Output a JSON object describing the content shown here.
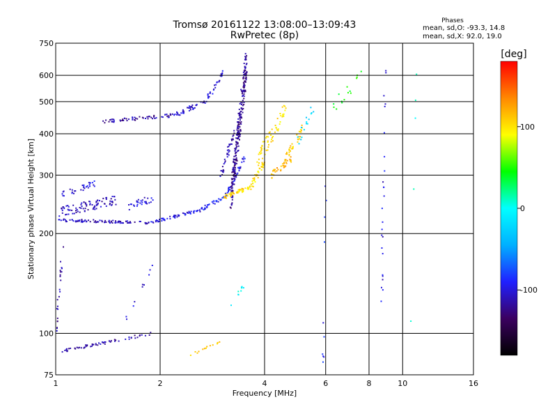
{
  "chart_data": {
    "type": "scatter",
    "title_line1": "Tromsø 20161122 13:08:00–13:09:43",
    "title_line2": "RwPretec (8p)",
    "xlabel": "Frequency [MHz]",
    "ylabel": "Stationary phase Virtual Height [km]",
    "x_scale": "log",
    "y_scale": "log",
    "xlim": [
      1,
      16
    ],
    "ylim": [
      75,
      750
    ],
    "x_ticks": [
      1,
      2,
      4,
      6,
      8,
      10,
      16
    ],
    "y_ticks": [
      75,
      100,
      200,
      300,
      400,
      500,
      600,
      750
    ],
    "grid": true,
    "phase_info": {
      "heading": "Phases",
      "o_label": "mean, sd,O: ",
      "o_value": "-93.3, 14.8",
      "x_label": "mean, sd,X: ",
      "x_value": "92.0, 19.0"
    },
    "colorbar": {
      "label": "[deg]",
      "min": -180,
      "max": 180,
      "ticks": [
        100,
        0,
        -100
      ],
      "colors": [
        "#000000",
        "#3b0060",
        "#2020ff",
        "#00b0ff",
        "#00ffff",
        "#00ff00",
        "#ffff00",
        "#ff8800",
        "#ff0000"
      ]
    },
    "series": [
      {
        "traces": [
          {
            "xr": [
              1.0,
              1.85
            ],
            "yr": [
              220,
              215
            ],
            "phase": -110,
            "n": 90,
            "spread": 4
          },
          {
            "xr": [
              1.85,
              2.6
            ],
            "yr": [
              215,
              235
            ],
            "phase": -100,
            "n": 60,
            "spread": 4
          },
          {
            "xr": [
              2.6,
              3.1
            ],
            "yr": [
              235,
              260
            ],
            "phase": -90,
            "n": 40,
            "spread": 5
          },
          {
            "xr": [
              3.1,
              3.5
            ],
            "yr": [
              260,
              340
            ],
            "phase": -95,
            "n": 40,
            "spread": 6
          },
          {
            "xr": [
              1.02,
              1.5
            ],
            "yr": [
              232,
              252
            ],
            "phase": -110,
            "n": 90,
            "spread": 14
          },
          {
            "xr": [
              1.02,
              1.3
            ],
            "yr": [
              260,
              285
            ],
            "phase": -100,
            "n": 30,
            "spread": 10
          },
          {
            "xr": [
              1.6,
              1.9
            ],
            "yr": [
              240,
              255
            ],
            "phase": -100,
            "n": 30,
            "spread": 10
          },
          {
            "xr": [
              1.35,
              2.2
            ],
            "yr": [
              435,
              455
            ],
            "phase": -115,
            "n": 60,
            "spread": 5
          },
          {
            "xr": [
              2.2,
              2.7
            ],
            "yr": [
              455,
              500
            ],
            "phase": -105,
            "n": 40,
            "spread": 6
          },
          {
            "xr": [
              2.7,
              3.05
            ],
            "yr": [
              500,
              610
            ],
            "phase": -100,
            "n": 30,
            "spread": 8
          },
          {
            "xr": [
              3.0,
              3.3
            ],
            "yr": [
              300,
              420
            ],
            "phase": -115,
            "n": 40,
            "spread": 8
          },
          {
            "xr": [
              3.2,
              3.55
            ],
            "yr": [
              260,
              660
            ],
            "phase": -120,
            "n": 260,
            "spread": 40
          },
          {
            "xr": [
              3.05,
              3.6
            ],
            "yr": [
              258,
              275
            ],
            "phase": 105,
            "n": 45,
            "spread": 6
          },
          {
            "xr": [
              3.6,
              4.0
            ],
            "yr": [
              270,
              330
            ],
            "phase": 100,
            "n": 40,
            "spread": 10
          },
          {
            "xr": [
              3.8,
              4.6
            ],
            "yr": [
              330,
              470
            ],
            "phase": 100,
            "n": 60,
            "spread": 25
          },
          {
            "xr": [
              4.2,
              4.8
            ],
            "yr": [
              300,
              340
            ],
            "phase": 120,
            "n": 40,
            "spread": 10
          },
          {
            "xr": [
              4.6,
              5.2
            ],
            "yr": [
              340,
              420
            ],
            "phase": 110,
            "n": 35,
            "spread": 10
          },
          {
            "xr": [
              5.0,
              5.5
            ],
            "yr": [
              380,
              480
            ],
            "phase": -20,
            "n": 15,
            "spread": 20
          },
          {
            "xr": [
              1.0,
              1.05
            ],
            "yr": [
              100,
              185
            ],
            "phase": -115,
            "n": 25,
            "spread": 5
          },
          {
            "xr": [
              1.02,
              1.9
            ],
            "yr": [
              88,
              100
            ],
            "phase": -115,
            "n": 60,
            "spread": 4
          },
          {
            "xr": [
              1.6,
              1.9
            ],
            "yr": [
              110,
              160
            ],
            "phase": -100,
            "n": 10,
            "spread": 6
          },
          {
            "xr": [
              2.4,
              3.0
            ],
            "yr": [
              85,
              95
            ],
            "phase": 110,
            "n": 15,
            "spread": 3
          },
          {
            "xr": [
              3.1,
              3.5
            ],
            "yr": [
              115,
              140
            ],
            "phase": 0,
            "n": 10,
            "spread": 6
          },
          {
            "xr": [
              5.9,
              6.0
            ],
            "yr": [
              80,
              300
            ],
            "phase": -90,
            "n": 10,
            "spread": 10
          },
          {
            "xr": [
              8.7,
              8.9
            ],
            "yr": [
              120,
              650
            ],
            "phase": -100,
            "n": 25,
            "spread": 15
          },
          {
            "xr": [
              6.0,
              8.0
            ],
            "yr": [
              450,
              650
            ],
            "phase": 50,
            "n": 15,
            "spread": 20
          },
          {
            "xr": [
              10.5,
              11.0
            ],
            "yr": [
              100,
              620
            ],
            "phase": 0,
            "n": 5,
            "spread": 20
          }
        ]
      }
    ]
  }
}
